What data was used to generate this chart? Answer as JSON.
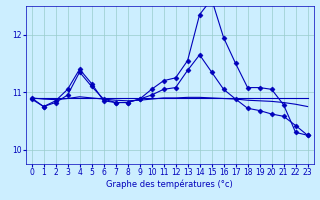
{
  "xlabel": "Graphe des températures (°c)",
  "bg_color": "#cceeff",
  "line_color": "#0000bb",
  "grid_color": "#99cccc",
  "xlim": [
    -0.5,
    23.5
  ],
  "ylim": [
    9.75,
    12.5
  ],
  "yticks": [
    10,
    11,
    12
  ],
  "xticks": [
    0,
    1,
    2,
    3,
    4,
    5,
    6,
    7,
    8,
    9,
    10,
    11,
    12,
    13,
    14,
    15,
    16,
    17,
    18,
    19,
    20,
    21,
    22,
    23
  ],
  "series": [
    {
      "y": [
        10.9,
        10.75,
        10.85,
        11.05,
        11.4,
        11.15,
        10.85,
        10.82,
        10.82,
        10.88,
        11.05,
        11.2,
        11.25,
        11.55,
        12.35,
        12.62,
        11.95,
        11.5,
        11.08,
        11.08,
        11.05,
        10.78,
        10.3,
        10.25
      ],
      "marker": true
    },
    {
      "y": [
        10.88,
        10.75,
        10.82,
        10.95,
        11.35,
        11.1,
        10.88,
        10.82,
        10.82,
        10.88,
        10.95,
        11.05,
        11.08,
        11.38,
        11.65,
        11.35,
        11.05,
        10.88,
        10.72,
        10.68,
        10.62,
        10.58,
        10.42,
        10.25
      ],
      "marker": true
    },
    {
      "y": [
        10.9,
        10.9,
        10.9,
        10.9,
        10.9,
        10.9,
        10.9,
        10.9,
        10.9,
        10.9,
        10.9,
        10.9,
        10.9,
        10.9,
        10.9,
        10.9,
        10.9,
        10.9,
        10.9,
        10.9,
        10.9,
        10.9,
        10.9,
        10.9
      ],
      "marker": false
    },
    {
      "y": [
        10.9,
        10.88,
        10.87,
        10.89,
        10.92,
        10.9,
        10.88,
        10.86,
        10.85,
        10.86,
        10.88,
        10.9,
        10.9,
        10.91,
        10.91,
        10.9,
        10.89,
        10.88,
        10.86,
        10.85,
        10.84,
        10.82,
        10.79,
        10.75
      ],
      "marker": false
    }
  ],
  "marker_symbol": "D",
  "marker_size": 2.5,
  "line_width": 0.8,
  "xlabel_fontsize": 6,
  "tick_fontsize": 5.5
}
